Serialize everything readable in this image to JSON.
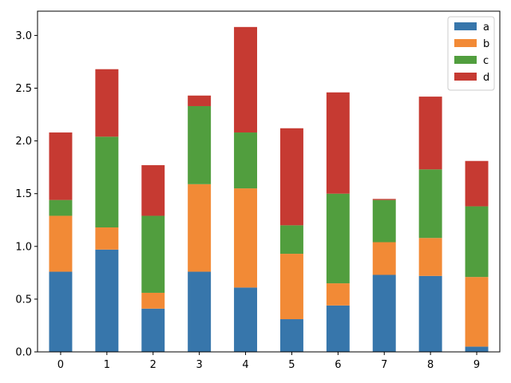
{
  "chart_data": {
    "type": "bar",
    "stacked": true,
    "title": "",
    "xlabel": "",
    "ylabel": "",
    "categories": [
      "0",
      "1",
      "2",
      "3",
      "4",
      "5",
      "6",
      "7",
      "8",
      "9"
    ],
    "ylim": [
      0,
      3.23
    ],
    "yticks": [
      "0.0",
      "0.5",
      "1.0",
      "1.5",
      "2.0",
      "2.5",
      "3.0"
    ],
    "legend_position": "top-right",
    "series": [
      {
        "name": "a",
        "color": "#3776ab",
        "values": [
          0.76,
          0.97,
          0.41,
          0.76,
          0.61,
          0.31,
          0.44,
          0.73,
          0.72,
          0.05
        ]
      },
      {
        "name": "b",
        "color": "#f28a36",
        "values": [
          0.53,
          0.21,
          0.15,
          0.83,
          0.94,
          0.62,
          0.21,
          0.31,
          0.36,
          0.66
        ]
      },
      {
        "name": "c",
        "color": "#519e3e",
        "values": [
          0.15,
          0.86,
          0.73,
          0.74,
          0.53,
          0.27,
          0.85,
          0.4,
          0.65,
          0.67
        ]
      },
      {
        "name": "d",
        "color": "#c63a32",
        "values": [
          0.64,
          0.64,
          0.48,
          0.1,
          1.0,
          0.92,
          0.96,
          0.01,
          0.69,
          0.43
        ]
      }
    ]
  }
}
